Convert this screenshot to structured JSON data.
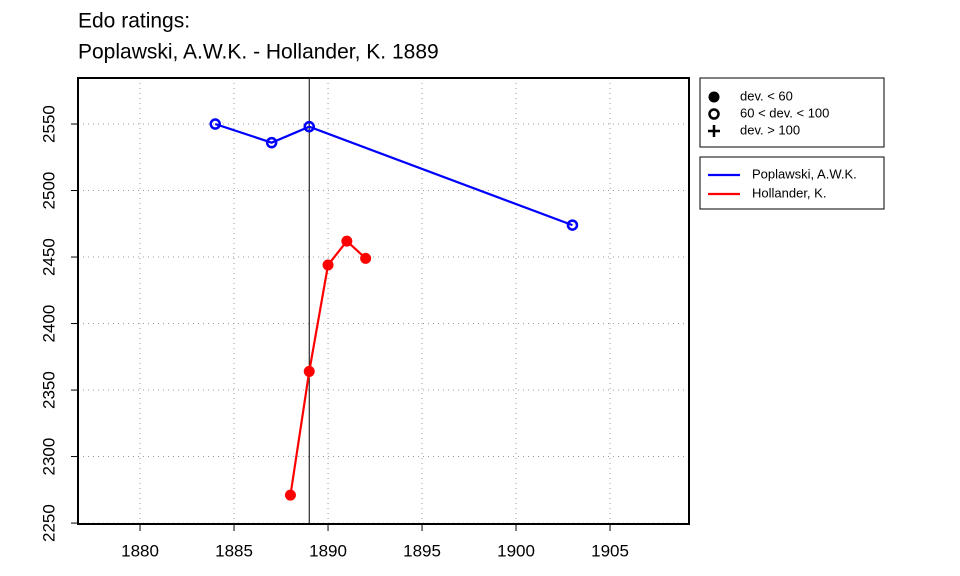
{
  "chart_data": {
    "type": "line",
    "title": [
      "Edo ratings:",
      "Poplawski, A.W.K. - Hollander, K. 1889"
    ],
    "series": [
      {
        "name": "Poplawski, A.W.K.",
        "color": "#0000ff",
        "marker": "open",
        "x": [
          1884,
          1887,
          1889,
          1903
        ],
        "values": [
          2550,
          2536,
          2548,
          2474
        ]
      },
      {
        "name": "Hollander, K.",
        "color": "#ff0000",
        "marker": "filled",
        "x": [
          1888,
          1889,
          1890,
          1891,
          1892
        ],
        "values": [
          2271,
          2364,
          2444,
          2462,
          2449
        ]
      }
    ],
    "symbol_legend": [
      {
        "symbol": "filled",
        "label": "dev. < 60"
      },
      {
        "symbol": "open",
        "label": "60 < dev. < 100"
      },
      {
        "symbol": "plus",
        "label": "dev. > 100"
      }
    ],
    "vline": 1889,
    "xlim": [
      1876.7,
      1909.2
    ],
    "xticks": [
      1880,
      1885,
      1890,
      1895,
      1900,
      1905
    ],
    "ylim": [
      2249.3,
      2584.6
    ],
    "yticks": [
      2250,
      2300,
      2350,
      2400,
      2450,
      2500,
      2550
    ],
    "grid": true
  }
}
